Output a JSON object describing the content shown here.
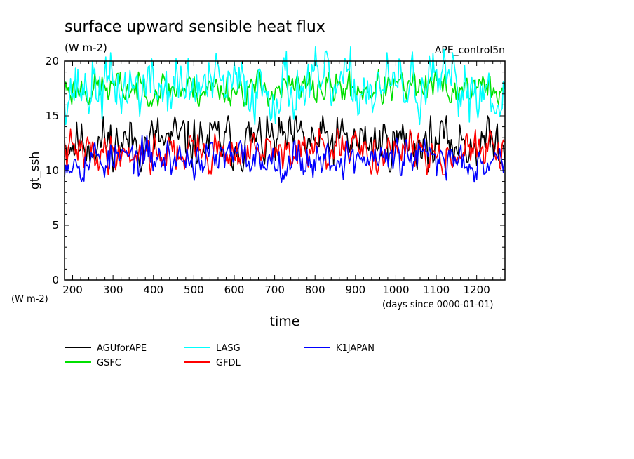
{
  "chart_data": {
    "type": "line",
    "title": "surface upward sensible heat flux",
    "subtitle": "(W m-2)",
    "run_label": "APE_control5n",
    "xlabel": "time",
    "x_unit_label": "(days since 0000-01-01)",
    "ylabel": "gt_ssh",
    "y_unit_label": "(W m-2)",
    "xlim": [
      180,
      1270
    ],
    "ylim": [
      0,
      20
    ],
    "x_ticks": [
      200,
      300,
      400,
      500,
      600,
      700,
      800,
      900,
      1000,
      1100,
      1200
    ],
    "y_ticks": [
      0,
      5,
      10,
      15,
      20
    ],
    "grid": false,
    "legend_position": "below",
    "legend": [
      "AGUforAPE",
      "GSFC",
      "LASG",
      "GFDL",
      "K1JAPAN"
    ],
    "sample_interval_days": 3,
    "series": [
      {
        "name": "AGUforAPE",
        "color": "#000000",
        "mean": 12.6,
        "amplitude": 1.1,
        "min": 9.9,
        "max": 15.0,
        "seed": 11
      },
      {
        "name": "GSFC",
        "color": "#00e000",
        "mean": 17.5,
        "amplitude": 0.7,
        "min": 15.9,
        "max": 19.2,
        "seed": 23
      },
      {
        "name": "LASG",
        "color": "#00ffff",
        "mean": 17.6,
        "amplitude": 1.3,
        "min": 14.2,
        "max": 21.3,
        "seed": 37
      },
      {
        "name": "GFDL",
        "color": "#ff0000",
        "mean": 11.7,
        "amplitude": 0.8,
        "min": 9.6,
        "max": 13.8,
        "seed": 41
      },
      {
        "name": "K1JAPAN",
        "color": "#0000ff",
        "mean": 11.1,
        "amplitude": 0.8,
        "min": 8.9,
        "max": 13.2,
        "seed": 53
      }
    ]
  }
}
